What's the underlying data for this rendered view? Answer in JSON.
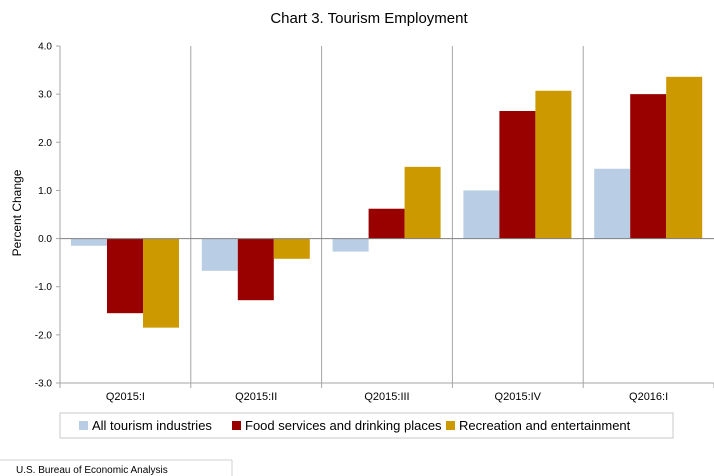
{
  "chart_data": {
    "type": "bar",
    "title": "Chart 3. Tourism Employment",
    "xlabel": "",
    "ylabel": "Percent Change",
    "ylim": [
      -3.0,
      4.0
    ],
    "yticks": [
      "4.0",
      "3.0",
      "2.0",
      "1.0",
      "0.0",
      "-1.0",
      "-2.0",
      "-3.0"
    ],
    "categories": [
      "Q2015:I",
      "Q2015:II",
      "Q2015:III",
      "Q2015:IV",
      "Q2016:I"
    ],
    "series": [
      {
        "name": "All tourism industries",
        "color": "#b9cde5",
        "values": [
          -0.15,
          -0.67,
          -0.27,
          1.0,
          1.45
        ]
      },
      {
        "name": "Food services and drinking places",
        "color": "#990000",
        "values": [
          -1.55,
          -1.28,
          0.62,
          2.65,
          3.0
        ]
      },
      {
        "name": "Recreation and entertainment",
        "color": "#cc9900",
        "values": [
          -1.85,
          -0.42,
          1.49,
          3.07,
          3.36
        ]
      }
    ],
    "grid": "vertical category separators",
    "legend": "bottom"
  },
  "source": "U.S. Bureau of Economic Analysis"
}
